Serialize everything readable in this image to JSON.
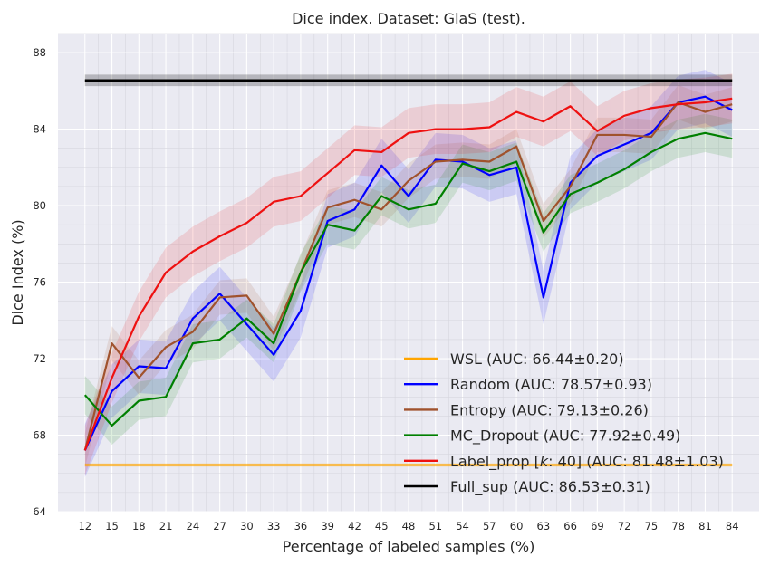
{
  "chart_data": {
    "type": "line",
    "title": "Dice index. Dataset: GlaS (test).",
    "xlabel": "Percentage of labeled samples (%)",
    "ylabel": "Dice Index (%)",
    "x": [
      12,
      15,
      18,
      21,
      24,
      27,
      30,
      33,
      36,
      39,
      42,
      45,
      48,
      51,
      54,
      57,
      60,
      63,
      66,
      69,
      72,
      75,
      78,
      81,
      84
    ],
    "xlim": [
      9,
      87
    ],
    "ylim": [
      64,
      89
    ],
    "yticks": [
      64,
      68,
      72,
      76,
      80,
      84,
      88
    ],
    "grid": true,
    "legend_position": "lower-right",
    "series": [
      {
        "name": "WSL (AUC: 66.44±0.20)",
        "color": "#ffa500",
        "values": [
          66.44,
          66.44,
          66.44,
          66.44,
          66.44,
          66.44,
          66.44,
          66.44,
          66.44,
          66.44,
          66.44,
          66.44,
          66.44,
          66.44,
          66.44,
          66.44,
          66.44,
          66.44,
          66.44,
          66.44,
          66.44,
          66.44,
          66.44,
          66.44,
          66.44
        ],
        "band": 0.1
      },
      {
        "name": "Random (AUC: 78.57±0.93)",
        "color": "#0000ff",
        "values": [
          67.2,
          70.3,
          71.6,
          71.5,
          74.1,
          75.4,
          73.8,
          72.2,
          74.5,
          79.2,
          79.8,
          82.1,
          80.5,
          82.4,
          82.3,
          81.6,
          82.0,
          75.2,
          81.2,
          82.6,
          83.2,
          83.8,
          85.4,
          85.7,
          85.0
        ],
        "band": 1.4
      },
      {
        "name": "Entropy (AUC: 79.13±0.26)",
        "color": "#a0522d",
        "values": [
          67.2,
          72.8,
          71.0,
          72.6,
          73.4,
          75.2,
          75.3,
          73.3,
          76.5,
          79.9,
          80.3,
          79.8,
          81.3,
          82.3,
          82.4,
          82.3,
          83.1,
          79.2,
          81.0,
          83.7,
          83.7,
          83.6,
          85.4,
          84.9,
          85.3
        ],
        "band": 0.9
      },
      {
        "name": "MC_Dropout (AUC: 77.92±0.49)",
        "color": "#008000",
        "values": [
          70.1,
          68.5,
          69.8,
          70.0,
          72.8,
          73.0,
          74.1,
          72.8,
          76.5,
          79.0,
          78.7,
          80.5,
          79.8,
          80.1,
          82.2,
          81.8,
          82.3,
          78.6,
          80.6,
          81.2,
          81.9,
          82.8,
          83.5,
          83.8,
          83.5
        ],
        "band": 1.0
      },
      {
        "name": "Label_prop [k: 40] (AUC: 81.48±1.03)",
        "color": "#ee1111",
        "values": [
          67.2,
          71.0,
          74.2,
          76.5,
          77.6,
          78.4,
          79.1,
          80.2,
          80.5,
          81.7,
          82.9,
          82.8,
          83.8,
          84.0,
          84.0,
          84.1,
          84.9,
          84.4,
          85.2,
          83.9,
          84.7,
          85.1,
          85.3,
          85.4,
          85.6
        ],
        "band": 1.3
      },
      {
        "name": "Full_sup (AUC: 86.53±0.31)",
        "color": "#000000",
        "values": [
          86.55,
          86.55,
          86.55,
          86.55,
          86.55,
          86.55,
          86.55,
          86.55,
          86.55,
          86.55,
          86.55,
          86.55,
          86.55,
          86.55,
          86.55,
          86.55,
          86.55,
          86.55,
          86.55,
          86.55,
          86.55,
          86.55,
          86.55,
          86.55,
          86.55
        ],
        "band": 0.3
      }
    ],
    "legend_entries": [
      {
        "label_before": "WSL (AUC: 66.44±0.20)",
        "label_italic": "",
        "label_after": ""
      },
      {
        "label_before": "Random (AUC: 78.57±0.93)",
        "label_italic": "",
        "label_after": ""
      },
      {
        "label_before": "Entropy (AUC: 79.13±0.26)",
        "label_italic": "",
        "label_after": ""
      },
      {
        "label_before": "MC_Dropout (AUC: 77.92±0.49)",
        "label_italic": "",
        "label_after": ""
      },
      {
        "label_before": "Label_prop [",
        "label_italic": "k",
        "label_after": ": 40] (AUC: 81.48±1.03)"
      },
      {
        "label_before": "Full_sup (AUC: 86.53±0.31)",
        "label_italic": "",
        "label_after": ""
      }
    ]
  }
}
